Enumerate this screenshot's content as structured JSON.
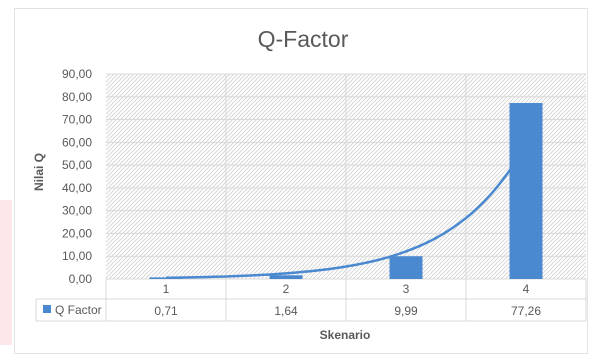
{
  "chart_data": {
    "type": "bar",
    "title": "Q-Factor",
    "xlabel": "Skenario",
    "ylabel": "Nilai Q",
    "categories": [
      "1",
      "2",
      "3",
      "4"
    ],
    "series": [
      {
        "name": "Q Factor",
        "values": [
          0.71,
          1.64,
          9.99,
          77.26
        ],
        "value_labels": [
          "0,71",
          "1,64",
          "9,99",
          "77,26"
        ],
        "color": "#4a89d0"
      }
    ],
    "trendline": {
      "type": "exponential",
      "color": "#4a89d0"
    },
    "ylim": [
      0,
      90
    ],
    "y_ticks": [
      0,
      10,
      20,
      30,
      40,
      50,
      60,
      70,
      80,
      90
    ],
    "y_tick_labels": [
      "0,00",
      "10,00",
      "20,00",
      "30,00",
      "40,00",
      "50,00",
      "60,00",
      "70,00",
      "80,00",
      "90,00"
    ],
    "grid": true,
    "legend": "data-table",
    "data_table": true
  },
  "colors": {
    "bar": "#4a89d0",
    "grid": "#d9d9d9",
    "text": "#595959",
    "accent_stripe": "#fde7e9"
  }
}
